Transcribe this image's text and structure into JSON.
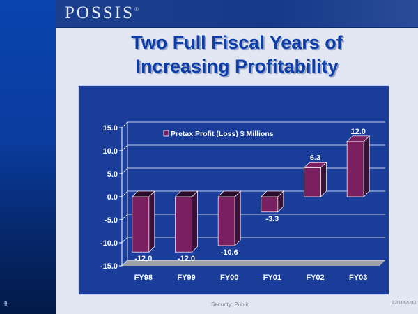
{
  "header": {
    "logo": "POSSIS",
    "logo_mark": "®"
  },
  "title_line1": "Two Full Fiscal Years of",
  "title_line2": "Increasing Profitability",
  "footer": {
    "page_number": "9",
    "security": "Security: Public",
    "date": "12/10/2003"
  },
  "colors": {
    "bar": "#7a2060",
    "bar_side": "#3a1238",
    "bar_top": "#2a0a28",
    "plot_bg": "#1a3d9a",
    "floor": "#a0a0a8"
  },
  "chart_data": {
    "type": "bar",
    "categories": [
      "FY98",
      "FY99",
      "FY00",
      "FY01",
      "FY02",
      "FY03"
    ],
    "values": [
      -12.0,
      -12.0,
      -10.6,
      -3.3,
      6.3,
      12.0
    ],
    "data_labels": [
      "-12.0",
      "-12.0",
      "-10.6",
      "-3.3",
      "6.3",
      "12.0"
    ],
    "legend": "Pretax Profit (Loss) $ Millions",
    "legend_position": "top-center",
    "ylim": [
      -15,
      15
    ],
    "yticks": [
      15,
      10,
      5,
      0,
      -5,
      -10,
      -15
    ],
    "ytick_labels": [
      "15.0",
      "10.0",
      "5.0",
      "0.0",
      "-5.0",
      "-10.0",
      "-15.0"
    ],
    "grid": true,
    "xlabel": "",
    "ylabel": ""
  }
}
